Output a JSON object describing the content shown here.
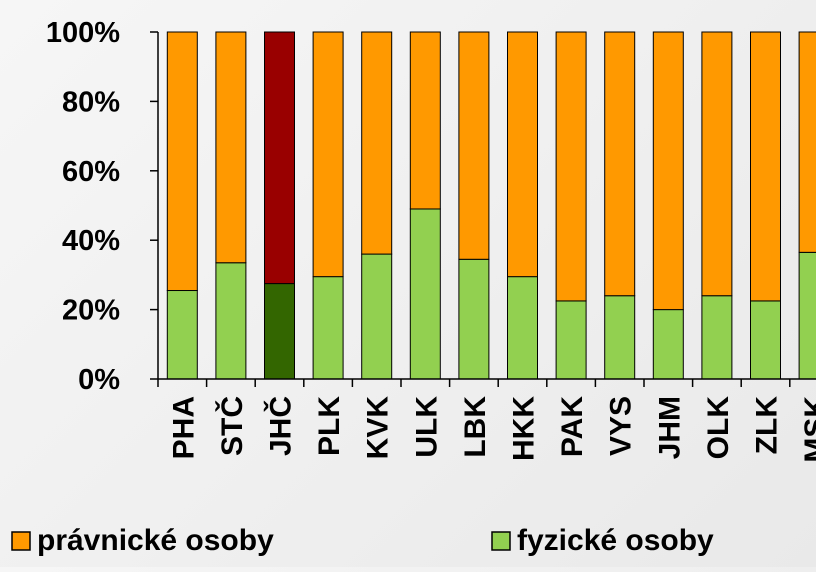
{
  "chart_data": {
    "type": "bar",
    "stacked": true,
    "percent": true,
    "categories": [
      "PHA",
      "STČ",
      "JHČ",
      "PLK",
      "KVK",
      "ULK",
      "LBK",
      "HKK",
      "PAK",
      "VYS",
      "JHM",
      "OLK",
      "ZLK",
      "MSK"
    ],
    "series": [
      {
        "name": "fyzické osoby",
        "color": "#92d050",
        "values": [
          25.5,
          33.5,
          27.5,
          29.5,
          36,
          49,
          34.5,
          29.5,
          22.5,
          24,
          20,
          24,
          22.5,
          36.5
        ]
      },
      {
        "name": "právnické osoby",
        "color": "#ff9900",
        "values": [
          74.5,
          66.5,
          72.5,
          70.5,
          64,
          51,
          65.5,
          70.5,
          77.5,
          76,
          80,
          76,
          77.5,
          63.5
        ]
      }
    ],
    "highlight": {
      "category": "JHČ",
      "colors": {
        "fyzické osoby": "#336600",
        "právnické osoby": "#990000"
      }
    },
    "yticks": [
      "0%",
      "20%",
      "40%",
      "60%",
      "80%",
      "100%"
    ],
    "ylim": [
      0,
      100
    ],
    "grid": false,
    "legend": {
      "position": "bottom",
      "entries": [
        "právnické osoby",
        "fyzické osoby"
      ]
    },
    "title": "",
    "xlabel": "",
    "ylabel": ""
  }
}
